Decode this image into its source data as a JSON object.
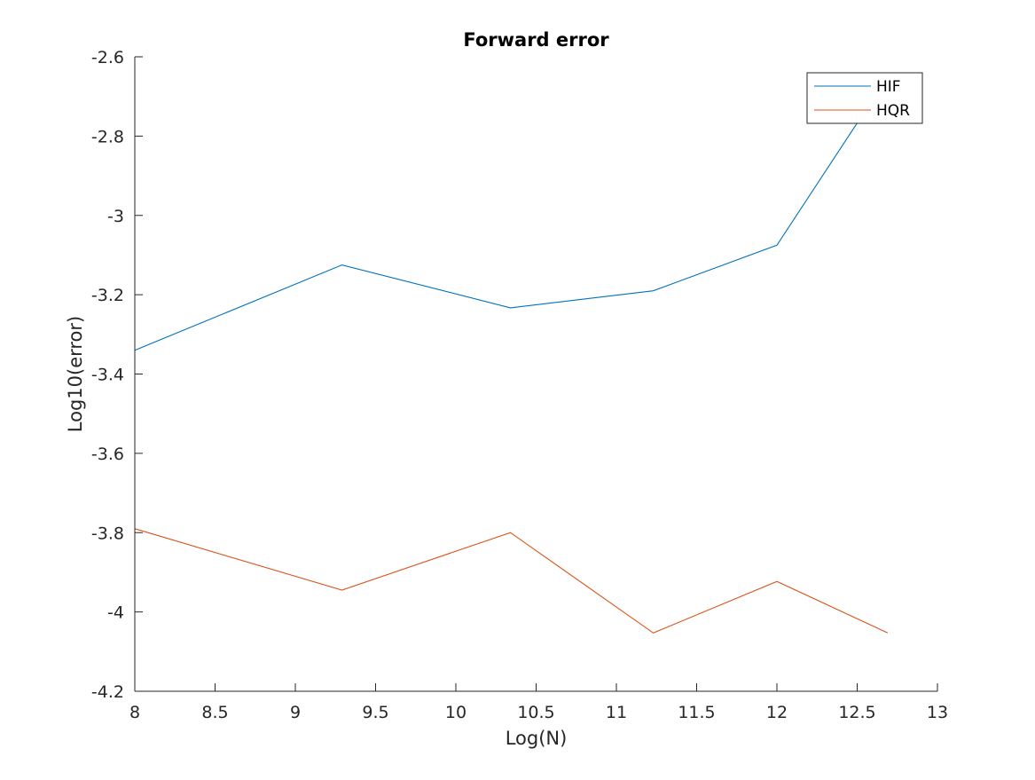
{
  "chart_data": {
    "type": "line",
    "title": "Forward error",
    "xlabel": "Log(N)",
    "ylabel": "Log10(error)",
    "xlim": [
      8,
      13
    ],
    "ylim": [
      -4.2,
      -2.6
    ],
    "xticks": [
      8,
      8.5,
      9,
      9.5,
      10,
      10.5,
      11,
      11.5,
      12,
      12.5,
      13
    ],
    "xtick_labels": [
      "8",
      "8.5",
      "9",
      "9.5",
      "10",
      "10.5",
      "11",
      "11.5",
      "12",
      "12.5",
      "13"
    ],
    "yticks": [
      -2.6,
      -2.8,
      -3.0,
      -3.2,
      -3.4,
      -3.6,
      -3.8,
      -4.0,
      -4.2
    ],
    "ytick_labels": [
      "-2.6",
      "-2.8",
      "-3",
      "-3.2",
      "-3.4",
      "-3.6",
      "-3.8",
      "-4",
      "-4.2"
    ],
    "legend_position": "top-right",
    "series": [
      {
        "name": "HIF",
        "color": "#0072BD",
        "x": [
          8,
          9.29,
          10.34,
          11.23,
          12,
          12.69
        ],
        "y": [
          -3.34,
          -3.125,
          -3.233,
          -3.19,
          -3.075,
          -2.65
        ]
      },
      {
        "name": "HQR",
        "color": "#D95319",
        "x": [
          8,
          9.29,
          10.34,
          11.23,
          12,
          12.69
        ],
        "y": [
          -3.79,
          -3.945,
          -3.8,
          -4.053,
          -3.923,
          -4.053
        ]
      }
    ]
  }
}
